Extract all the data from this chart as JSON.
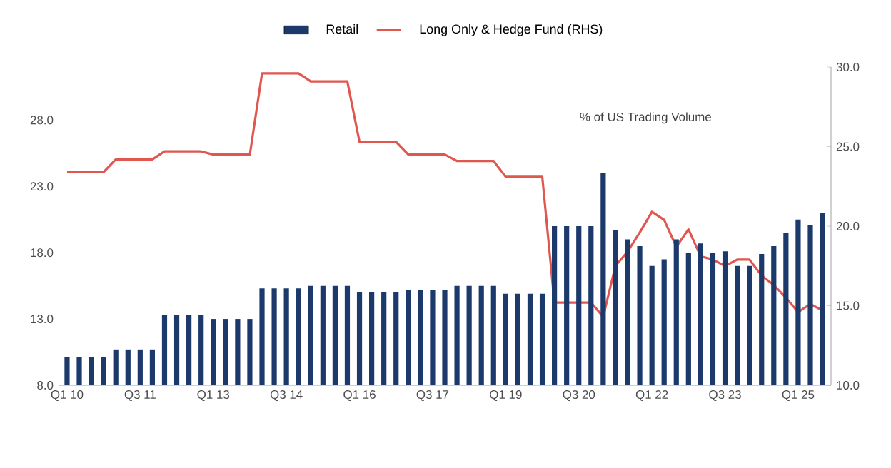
{
  "chart_data": {
    "type": "bar",
    "categories": [
      "Q1 10",
      null,
      null,
      null,
      null,
      null,
      "Q3 11",
      null,
      null,
      null,
      null,
      null,
      "Q1 13",
      null,
      null,
      null,
      null,
      null,
      "Q3 14",
      null,
      null,
      null,
      null,
      null,
      "Q1 16",
      null,
      null,
      null,
      null,
      null,
      "Q3 17",
      null,
      null,
      null,
      null,
      null,
      "Q1 19",
      null,
      null,
      null,
      null,
      null,
      "Q3 20",
      null,
      null,
      null,
      null,
      null,
      "Q1 22",
      null,
      null,
      null,
      null,
      null,
      "Q3 23",
      null,
      null,
      null,
      null,
      null,
      "Q1 25",
      null,
      null
    ],
    "series": [
      {
        "name": "Retail",
        "color": "#1b3a6b",
        "values": [
          10.1,
          10.1,
          10.1,
          10.1,
          10.7,
          10.7,
          10.7,
          10.7,
          13.3,
          13.3,
          13.3,
          13.3,
          13.0,
          13.0,
          13.0,
          13.0,
          15.3,
          15.3,
          15.3,
          15.3,
          15.5,
          15.5,
          15.5,
          15.5,
          15.0,
          15.0,
          15.0,
          15.0,
          15.2,
          15.2,
          15.2,
          15.2,
          15.5,
          15.5,
          15.5,
          15.5,
          14.9,
          14.9,
          14.9,
          14.9,
          20.0,
          20.0,
          20.0,
          20.0,
          24.0,
          19.7,
          19.0,
          18.5,
          17.0,
          17.5,
          19.0,
          18.0,
          18.7,
          18.0,
          18.1,
          17.0,
          17.0,
          17.9,
          18.5,
          19.5,
          20.5,
          20.1,
          21.0
        ]
      },
      {
        "name": "Long Only & Hedge Fund (RHS)",
        "type": "line",
        "axis": "y2",
        "color": "#e0574f",
        "values": [
          23.4,
          23.4,
          23.4,
          23.4,
          24.2,
          24.2,
          24.2,
          24.2,
          24.7,
          24.7,
          24.7,
          24.7,
          24.5,
          24.5,
          24.5,
          24.5,
          29.6,
          29.6,
          29.6,
          29.6,
          29.1,
          29.1,
          29.1,
          29.1,
          25.3,
          25.3,
          25.3,
          25.3,
          24.5,
          24.5,
          24.5,
          24.5,
          24.1,
          24.1,
          24.1,
          24.1,
          23.1,
          23.1,
          23.1,
          23.1,
          15.2,
          15.2,
          15.2,
          15.2,
          14.3,
          17.5,
          18.4,
          19.6,
          20.9,
          20.4,
          18.7,
          19.8,
          18.1,
          17.9,
          17.5,
          17.9,
          17.9,
          16.9,
          16.3,
          15.5,
          14.6,
          15.1,
          14.7
        ]
      }
    ],
    "ylim": [
      8,
      32
    ],
    "yticks": [
      {
        "value": 8,
        "label": "8.0"
      },
      {
        "value": 13,
        "label": "13.0"
      },
      {
        "value": 18,
        "label": "18.0"
      },
      {
        "value": 23,
        "label": "23.0"
      },
      {
        "value": 28,
        "label": "28.0"
      }
    ],
    "y2lim": [
      10,
      30
    ],
    "y2ticks": [
      {
        "value": 10,
        "label": "10.0"
      },
      {
        "value": 15,
        "label": "15.0"
      },
      {
        "value": 20,
        "label": "20.0"
      },
      {
        "value": 25,
        "label": "25.0"
      },
      {
        "value": 30,
        "label": "30.0"
      }
    ],
    "annotations": [
      "% of US Trading Volume"
    ],
    "legend": "top",
    "grid": false
  }
}
